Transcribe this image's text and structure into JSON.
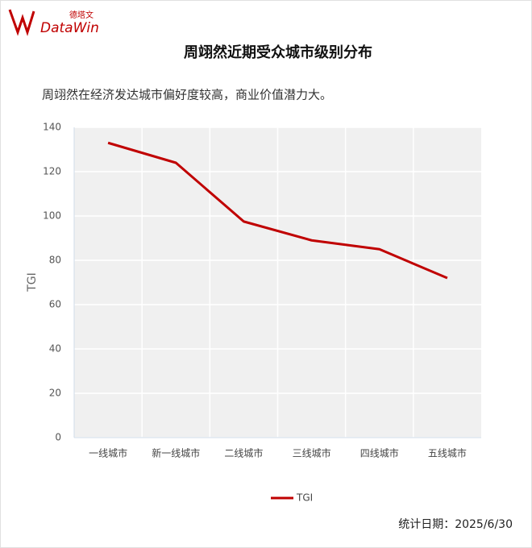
{
  "logo": {
    "brand": "DataWin",
    "brand_cn": "德塔文"
  },
  "chart_data": {
    "type": "line",
    "title": "周翊然近期受众城市级别分布",
    "subtitle": "周翊然在经济发达城市偏好度较高，商业价值潜力大。",
    "y_label": "TGI",
    "categories": [
      "一线城市",
      "新一线城市",
      "二线城市",
      "三线城市",
      "四线城市",
      "五线城市"
    ],
    "series": [
      {
        "name": "TGI",
        "color": "#c00000",
        "values": [
          133,
          124,
          97.5,
          89,
          85,
          72
        ]
      }
    ],
    "ylim": [
      0,
      140
    ],
    "yticks": [
      0,
      20,
      40,
      60,
      80,
      100,
      120,
      140
    ],
    "grid": true,
    "legend": "bottom"
  },
  "footer": "统计日期：2025/6/30"
}
